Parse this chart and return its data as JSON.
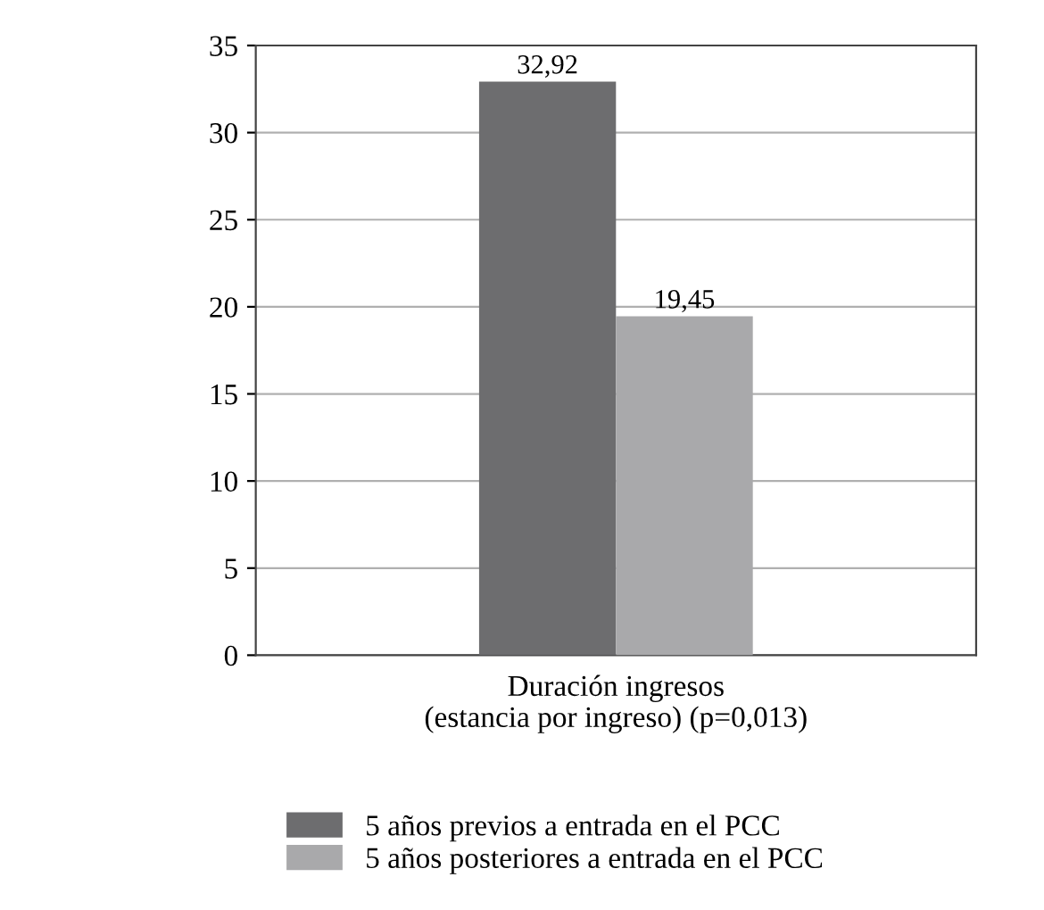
{
  "chart_data": {
    "type": "bar",
    "categories": [
      "Duración ingresos\n(estancia por ingreso) (p=0,013)"
    ],
    "series": [
      {
        "name": "5 años previos a entrada en el PCC",
        "color": "#6d6d6f",
        "values": [
          32.92
        ],
        "value_labels": [
          "32,92"
        ]
      },
      {
        "name": "5 años posteriores a entrada en el PCC",
        "color": "#a9a9ab",
        "values": [
          19.45
        ],
        "value_labels": [
          "19,45"
        ]
      }
    ],
    "ylim": [
      0,
      35
    ],
    "yticks": [
      0,
      5,
      10,
      15,
      20,
      25,
      30,
      35
    ],
    "grid": "y",
    "legend": "bottom"
  }
}
